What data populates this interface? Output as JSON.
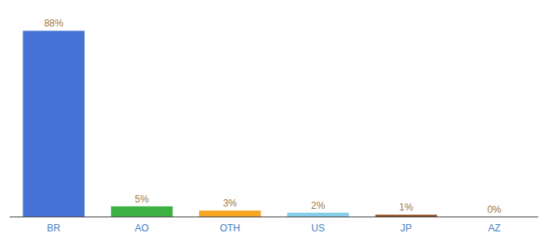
{
  "chart_data": {
    "type": "bar",
    "categories": [
      "BR",
      "AO",
      "OTH",
      "US",
      "JP",
      "AZ"
    ],
    "values": [
      88,
      5,
      3,
      2,
      1,
      0
    ],
    "value_labels": [
      "88%",
      "5%",
      "3%",
      "2%",
      "1%",
      "0%"
    ],
    "colors": [
      "#4472d4",
      "#3cb043",
      "#f5a623",
      "#87ceeb",
      "#8b4513",
      "#cccccc"
    ],
    "ylim": [
      0,
      98
    ],
    "data_labels": true,
    "tick_labels": "x",
    "grid": false
  }
}
